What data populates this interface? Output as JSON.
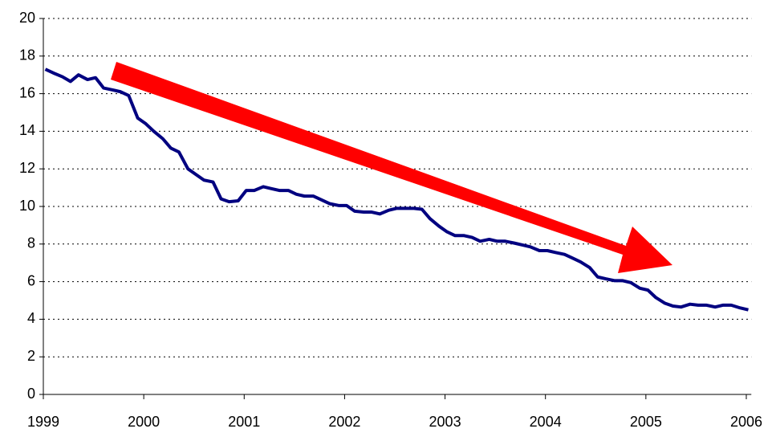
{
  "chart_data": {
    "type": "line",
    "x": [
      1999.02,
      1999.1,
      1999.19,
      1999.27,
      1999.35,
      1999.44,
      1999.52,
      1999.6,
      1999.69,
      1999.77,
      1999.85,
      1999.94,
      2000.02,
      2000.1,
      2000.19,
      2000.27,
      2000.35,
      2000.44,
      2000.52,
      2000.6,
      2000.69,
      2000.77,
      2000.85,
      2000.94,
      2001.02,
      2001.1,
      2001.19,
      2001.27,
      2001.35,
      2001.44,
      2001.52,
      2001.6,
      2001.69,
      2001.77,
      2001.85,
      2001.94,
      2002.02,
      2002.1,
      2002.19,
      2002.27,
      2002.35,
      2002.44,
      2002.52,
      2002.6,
      2002.69,
      2002.77,
      2002.85,
      2002.94,
      2003.02,
      2003.1,
      2003.19,
      2003.27,
      2003.35,
      2003.44,
      2003.52,
      2003.6,
      2003.69,
      2003.77,
      2003.85,
      2003.94,
      2004.02,
      2004.1,
      2004.19,
      2004.27,
      2004.35,
      2004.44,
      2004.52,
      2004.6,
      2004.69,
      2004.77,
      2004.85,
      2004.94,
      2005.02,
      2005.1,
      2005.19,
      2005.27,
      2005.35,
      2005.44,
      2005.52,
      2005.6,
      2005.69,
      2005.77,
      2005.85,
      2005.94,
      2006.02
    ],
    "series": [
      {
        "color": "#000080",
        "values": [
          17.3,
          17.1,
          16.9,
          16.65,
          17.0,
          16.75,
          16.85,
          16.3,
          16.2,
          16.1,
          15.9,
          14.7,
          14.4,
          14.0,
          13.6,
          13.1,
          12.9,
          12.0,
          11.7,
          11.4,
          11.3,
          10.4,
          10.25,
          10.3,
          10.85,
          10.85,
          11.05,
          10.95,
          10.85,
          10.85,
          10.65,
          10.55,
          10.55,
          10.35,
          10.15,
          10.05,
          10.05,
          9.75,
          9.7,
          9.7,
          9.6,
          9.8,
          9.9,
          9.9,
          9.9,
          9.85,
          9.35,
          8.95,
          8.65,
          8.45,
          8.45,
          8.35,
          8.15,
          8.25,
          8.15,
          8.15,
          8.05,
          7.95,
          7.85,
          7.65,
          7.65,
          7.55,
          7.45,
          7.25,
          7.05,
          6.75,
          6.25,
          6.15,
          6.05,
          6.05,
          5.95,
          5.65,
          5.55,
          5.15,
          4.85,
          4.7,
          4.65,
          4.8,
          4.75,
          4.75,
          4.65,
          4.75,
          4.75,
          4.6,
          4.5
        ]
      }
    ],
    "xlim": [
      1999,
      2006.05
    ],
    "xticks": [
      1999,
      2000,
      2001,
      2002,
      2003,
      2004,
      2005,
      2006
    ],
    "ylim": [
      0,
      20
    ],
    "yticks": [
      0,
      2,
      4,
      6,
      8,
      10,
      12,
      14,
      16,
      18,
      20
    ],
    "grid": true
  }
}
